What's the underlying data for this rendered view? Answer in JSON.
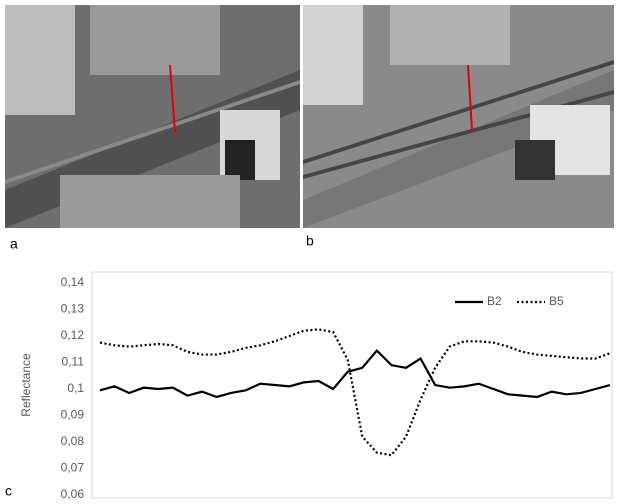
{
  "panel_labels": [
    "a",
    "b",
    "c"
  ],
  "chart_data": {
    "type": "line",
    "y_label": "Reflectance",
    "categories": [
      null,
      null,
      null,
      null,
      null,
      null,
      null,
      null,
      null,
      null,
      null,
      null,
      null,
      null,
      null,
      null,
      null,
      null,
      null,
      null,
      null,
      null,
      null,
      null,
      null,
      null,
      null,
      null,
      null,
      null,
      null,
      null,
      null,
      null,
      null,
      null
    ],
    "series": [
      {
        "name": "B2",
        "color": "#000000",
        "line_style": "solid",
        "values": [
          0.0995,
          0.101,
          0.0985,
          0.1005,
          0.1,
          0.1005,
          0.0975,
          0.099,
          0.097,
          0.0985,
          0.0995,
          0.102,
          0.1015,
          0.101,
          0.1025,
          0.103,
          0.1,
          0.1065,
          0.108,
          0.1145,
          0.109,
          0.108,
          0.1115,
          0.1015,
          0.1005,
          0.101,
          0.102,
          0.1,
          0.098,
          0.0975,
          0.097,
          0.099,
          0.098,
          0.0985,
          0.1,
          0.1015
        ]
      },
      {
        "name": "B5",
        "color": "#000000",
        "line_style": "dotted",
        "values": [
          0.1175,
          0.1165,
          0.116,
          0.1165,
          0.117,
          0.1165,
          0.114,
          0.113,
          0.113,
          0.114,
          0.1155,
          0.1165,
          0.118,
          0.12,
          0.122,
          0.1225,
          0.1215,
          0.111,
          0.082,
          0.076,
          0.075,
          0.082,
          0.096,
          0.108,
          0.116,
          0.118,
          0.118,
          0.1175,
          0.116,
          0.114,
          0.113,
          0.1125,
          0.112,
          0.1115,
          0.1115,
          0.1135
        ]
      }
    ],
    "ylim": [
      0.06,
      0.14
    ],
    "yticks": [
      {
        "value": 0.06,
        "label": "0,06"
      },
      {
        "value": 0.07,
        "label": "0,07"
      },
      {
        "value": 0.08,
        "label": "0,08"
      },
      {
        "value": 0.09,
        "label": "0,09"
      },
      {
        "value": 0.1,
        "label": "0,1"
      },
      {
        "value": 0.11,
        "label": "0,11"
      },
      {
        "value": 0.12,
        "label": "0,12"
      },
      {
        "value": 0.13,
        "label": "0,13"
      },
      {
        "value": 0.14,
        "label": "0,14"
      }
    ],
    "legend": "top-right"
  }
}
